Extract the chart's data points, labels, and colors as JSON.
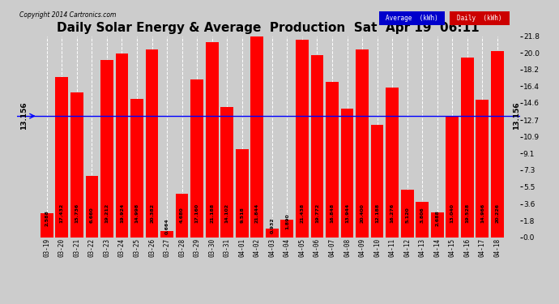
{
  "title": "Daily Solar Energy & Average  Production  Sat  Apr 19  06:11",
  "copyright": "Copyright 2014 Cartronics.com",
  "categories": [
    "03-19",
    "03-20",
    "03-21",
    "03-22",
    "03-23",
    "03-24",
    "03-25",
    "03-26",
    "03-27",
    "03-28",
    "03-29",
    "03-30",
    "03-31",
    "04-01",
    "04-02",
    "04-03",
    "04-04",
    "04-05",
    "04-06",
    "04-07",
    "04-08",
    "04-09",
    "04-10",
    "04-11",
    "04-12",
    "04-13",
    "04-14",
    "04-15",
    "04-16",
    "04-17",
    "04-18"
  ],
  "values": [
    2.588,
    17.432,
    15.736,
    6.66,
    19.212,
    19.924,
    14.998,
    20.382,
    0.664,
    4.68,
    17.16,
    21.188,
    14.102,
    9.518,
    21.844,
    0.932,
    1.89,
    21.438,
    19.772,
    16.848,
    13.944,
    20.4,
    12.188,
    16.276,
    5.12,
    3.806,
    2.688,
    13.04,
    19.528,
    14.966,
    20.226
  ],
  "average": 13.156,
  "average_label": "13.156",
  "bar_color": "#ff0000",
  "average_line_color": "#0000ff",
  "background_color": "#cccccc",
  "plot_bg_color": "#cccccc",
  "grid_color": "#ffffff",
  "title_fontsize": 11,
  "ylim": [
    0,
    21.8
  ],
  "yticks": [
    0.0,
    1.8,
    3.6,
    5.5,
    7.3,
    9.1,
    10.9,
    12.7,
    14.6,
    16.4,
    18.2,
    20.0,
    21.8
  ],
  "legend_avg_bg": "#0000cc",
  "legend_daily_bg": "#cc0000",
  "legend_avg_text": "Average  (kWh)",
  "legend_daily_text": "Daily  (kWh)"
}
